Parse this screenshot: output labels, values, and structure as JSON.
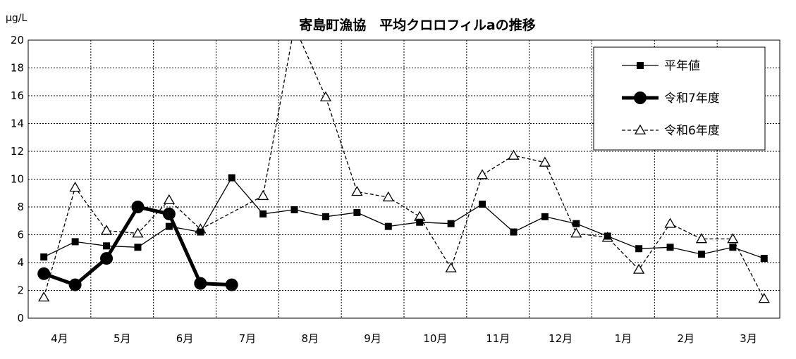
{
  "chart_data": {
    "type": "line",
    "title": "寄島町漁協　平均クロロフィルaの推移",
    "ylabel": "μg/L",
    "ylim": [
      0,
      20
    ],
    "yticks": [
      0,
      2,
      4,
      6,
      8,
      10,
      12,
      14,
      16,
      18,
      20
    ],
    "grid": true,
    "legend_position": "top-right",
    "month_labels": [
      "4月",
      "5月",
      "6月",
      "7月",
      "8月",
      "9月",
      "10月",
      "11月",
      "12月",
      "1月",
      "2月",
      "3月"
    ],
    "x_count": 24,
    "series": [
      {
        "name": "平年値",
        "style": "solid-square",
        "color": "#000000",
        "values": [
          4.4,
          5.5,
          5.2,
          5.1,
          6.6,
          6.2,
          10.1,
          7.5,
          7.8,
          7.3,
          7.6,
          6.6,
          6.9,
          6.8,
          8.2,
          6.2,
          7.3,
          6.8,
          5.9,
          5.0,
          5.1,
          4.6,
          5.1,
          4.3
        ]
      },
      {
        "name": "令和7年度",
        "style": "thick-circle",
        "color": "#000000",
        "values": [
          3.2,
          2.4,
          4.3,
          8.0,
          7.5,
          2.5,
          2.4,
          null,
          null,
          null,
          null,
          null,
          null,
          null,
          null,
          null,
          null,
          null,
          null,
          null,
          null,
          null,
          null,
          null
        ]
      },
      {
        "name": "令和6年度",
        "style": "dashed-triangle",
        "color": "#000000",
        "values": [
          1.5,
          9.4,
          6.3,
          6.1,
          8.5,
          6.4,
          null,
          8.8,
          21.0,
          15.9,
          9.1,
          8.7,
          7.3,
          3.6,
          10.3,
          11.7,
          11.2,
          6.1,
          5.8,
          3.5,
          6.8,
          5.7,
          5.7,
          1.4
        ],
        "peak_offscale": true
      }
    ]
  }
}
